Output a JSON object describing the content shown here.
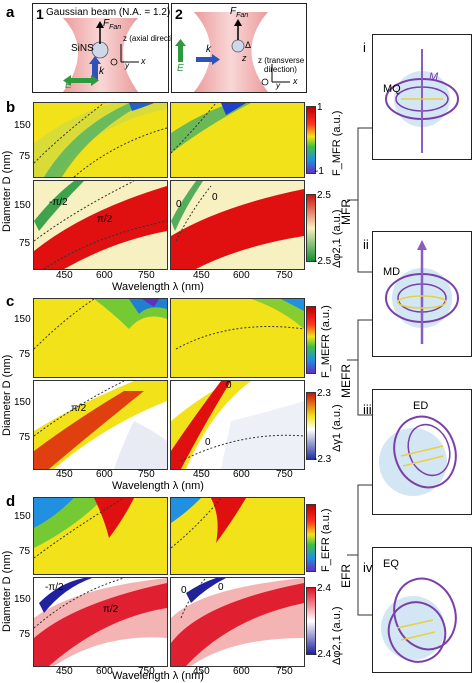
{
  "panel_labels": {
    "a": "a",
    "b": "b",
    "c": "c",
    "d": "d"
  },
  "schematic": {
    "left": {
      "number": "1",
      "title": "Gaussian beam (N.A. = 1.2)",
      "force": "F",
      "force_sub": "Fan",
      "particle": "SiNS",
      "axis_note": "z (axial direction)",
      "k_label": "k",
      "e_label": "E",
      "y_label": "y",
      "x_label": "x"
    },
    "right": {
      "number": "2",
      "force": "F",
      "force_sub": "Fan",
      "delta": "Δ",
      "z_label": "z",
      "axis_note_1": "z (transverse",
      "axis_note_2": "direction)",
      "k_label": "k",
      "e_label": "E",
      "y_label": "y",
      "x_label": "x"
    }
  },
  "axes": {
    "y_label": "Diameter D (nm)",
    "x_label": "Wavelength λ (nm)",
    "y_ticks": [
      "150",
      "75"
    ],
    "x_ticks": [
      "450",
      "600",
      "750"
    ]
  },
  "rows": {
    "b": {
      "top_cbar_label": "F_MFR (a.u.)",
      "top_cbar_max": "1",
      "top_cbar_min": "-1",
      "bottom_cbar_label": "Δφ2,1 (a.u.)",
      "bottom_cbar_max": "2.5",
      "bottom_cbar_min": "-2.5",
      "annotations": [
        "-π/2",
        "π/2",
        "0",
        "0"
      ]
    },
    "c": {
      "top_cbar_label": "F_MEFR (a.u.)",
      "bottom_cbar_label": "Δγ1 (a.u.)",
      "bottom_cbar_max": "2.3",
      "bottom_cbar_min": "-2.3",
      "annotations": [
        "π/2",
        "0",
        "0"
      ]
    },
    "d": {
      "top_cbar_label": "F_EFR (a.u.)",
      "bottom_cbar_label": "Δφ2,1 (a.u.)",
      "bottom_cbar_max": "2.4",
      "bottom_cbar_min": "-2.4",
      "annotations": [
        "-π/2",
        "π/2",
        "0",
        "0"
      ]
    }
  },
  "side": {
    "mfr": "MFR",
    "mefr": "MEFR",
    "efr": "EFR",
    "roman": [
      "i",
      "ii",
      "iii",
      "iv"
    ],
    "modes": [
      "MQ",
      "MD",
      "ED",
      "EQ"
    ],
    "m_label": "M"
  },
  "colors": {
    "yellow": "#f2e21a",
    "red": "#e01010",
    "pale": "#f7f0c0",
    "blue": "#2040d0",
    "purple": "#7a3fa8"
  }
}
